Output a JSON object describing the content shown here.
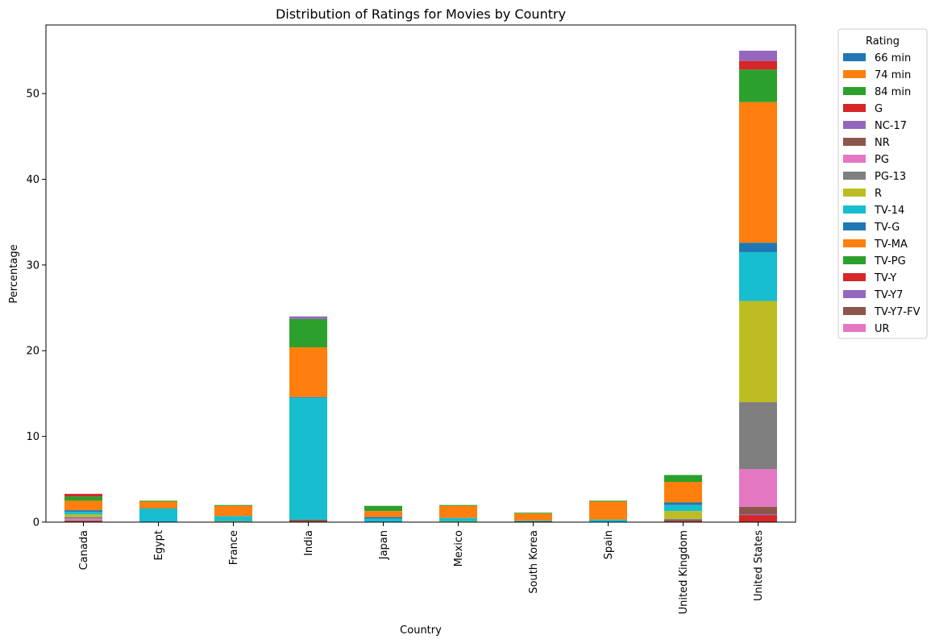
{
  "chart_data": {
    "type": "bar",
    "stacked": true,
    "title": "Distribution of Ratings for Movies by Country",
    "xlabel": "Country",
    "ylabel": "Percentage",
    "ylim": [
      0,
      58
    ],
    "yticks": [
      0,
      10,
      20,
      30,
      40,
      50
    ],
    "grid": false,
    "legend": {
      "title": "Rating",
      "placement": "outside-top-right"
    },
    "categories": [
      "Canada",
      "Egypt",
      "France",
      "India",
      "Japan",
      "Mexico",
      "South Korea",
      "Spain",
      "United Kingdom",
      "United States"
    ],
    "series": [
      {
        "name": "66 min",
        "color": "#1f77b4",
        "values": [
          0,
          0,
          0,
          0,
          0,
          0,
          0,
          0,
          0,
          0
        ]
      },
      {
        "name": "74 min",
        "color": "#ff7f0e",
        "values": [
          0,
          0,
          0,
          0,
          0,
          0,
          0,
          0,
          0,
          0
        ]
      },
      {
        "name": "84 min",
        "color": "#2ca02c",
        "values": [
          0,
          0,
          0,
          0,
          0,
          0,
          0,
          0,
          0,
          0
        ]
      },
      {
        "name": "G",
        "color": "#d62728",
        "values": [
          0.1,
          0,
          0,
          0,
          0,
          0,
          0,
          0,
          0.1,
          0.8
        ]
      },
      {
        "name": "NC-17",
        "color": "#9467bd",
        "values": [
          0,
          0,
          0,
          0,
          0,
          0,
          0,
          0,
          0,
          0.1
        ]
      },
      {
        "name": "NR",
        "color": "#8c564b",
        "values": [
          0.1,
          0,
          0,
          0.3,
          0,
          0,
          0.1,
          0,
          0.2,
          0.9
        ]
      },
      {
        "name": "PG",
        "color": "#e377c2",
        "values": [
          0.2,
          0,
          0,
          0,
          0,
          0,
          0,
          0,
          0,
          4.4
        ]
      },
      {
        "name": "PG-13",
        "color": "#7f7f7f",
        "values": [
          0.2,
          0,
          0,
          0,
          0,
          0,
          0,
          0,
          0.1,
          7.8
        ]
      },
      {
        "name": "R",
        "color": "#bcbd22",
        "values": [
          0.3,
          0,
          0.1,
          0,
          0,
          0.1,
          0,
          0,
          0.9,
          11.8
        ]
      },
      {
        "name": "TV-14",
        "color": "#17becf",
        "values": [
          0.3,
          1.6,
          0.6,
          14.2,
          0.4,
          0.4,
          0.1,
          0.3,
          0.7,
          5.7
        ]
      },
      {
        "name": "TV-G",
        "color": "#1f77b4",
        "values": [
          0.2,
          0,
          0,
          0.1,
          0.2,
          0,
          0,
          0,
          0.3,
          1.1
        ]
      },
      {
        "name": "TV-MA",
        "color": "#ff7f0e",
        "values": [
          1.1,
          0.8,
          1.2,
          5.8,
          0.7,
          1.4,
          0.8,
          2.1,
          2.4,
          16.4
        ]
      },
      {
        "name": "TV-PG",
        "color": "#2ca02c",
        "values": [
          0.5,
          0.1,
          0.1,
          3.3,
          0.6,
          0.1,
          0.1,
          0.1,
          0.8,
          3.8
        ]
      },
      {
        "name": "TV-Y",
        "color": "#d62728",
        "values": [
          0.3,
          0,
          0,
          0,
          0,
          0,
          0,
          0,
          0,
          1.0
        ]
      },
      {
        "name": "TV-Y7",
        "color": "#9467bd",
        "values": [
          0,
          0,
          0,
          0.3,
          0,
          0,
          0,
          0,
          0,
          1.2
        ]
      },
      {
        "name": "TV-Y7-FV",
        "color": "#8c564b",
        "values": [
          0,
          0,
          0,
          0,
          0,
          0,
          0,
          0,
          0,
          0
        ]
      },
      {
        "name": "UR",
        "color": "#e377c2",
        "values": [
          0,
          0,
          0,
          0,
          0,
          0,
          0,
          0,
          0,
          0
        ]
      }
    ]
  }
}
